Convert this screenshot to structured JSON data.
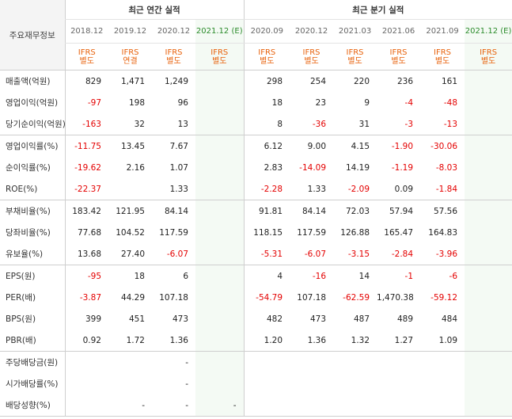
{
  "title": "주요재무정보",
  "groups": {
    "annual": "최근 연간 실적",
    "quarterly": "최근 분기 실적"
  },
  "periods": [
    {
      "label": "2018.12",
      "estimate": false,
      "standard": [
        "IFRS",
        "별도"
      ]
    },
    {
      "label": "2019.12",
      "estimate": false,
      "standard": [
        "IFRS",
        "연결"
      ]
    },
    {
      "label": "2020.12",
      "estimate": false,
      "standard": [
        "IFRS",
        "별도"
      ]
    },
    {
      "label": "2021.12",
      "mark": "(E)",
      "estimate": true,
      "standard": [
        "IFRS",
        "별도"
      ]
    },
    {
      "label": "2020.09",
      "estimate": false,
      "standard": [
        "IFRS",
        "별도"
      ]
    },
    {
      "label": "2020.12",
      "estimate": false,
      "standard": [
        "IFRS",
        "별도"
      ]
    },
    {
      "label": "2021.03",
      "estimate": false,
      "standard": [
        "IFRS",
        "별도"
      ]
    },
    {
      "label": "2021.06",
      "estimate": false,
      "standard": [
        "IFRS",
        "별도"
      ]
    },
    {
      "label": "2021.09",
      "estimate": false,
      "standard": [
        "IFRS",
        "별도"
      ]
    },
    {
      "label": "2021.12",
      "mark": "(E)",
      "estimate": true,
      "standard": [
        "IFRS",
        "별도"
      ]
    }
  ],
  "rows": [
    {
      "label": "매출액(억원)",
      "values": [
        "829",
        "1,471",
        "1,249",
        "",
        "298",
        "254",
        "220",
        "236",
        "161",
        ""
      ]
    },
    {
      "label": "영업이익(억원)",
      "values": [
        "-97",
        "198",
        "96",
        "",
        "18",
        "23",
        "9",
        "-4",
        "-48",
        ""
      ]
    },
    {
      "label": "당기순이익(억원)",
      "values": [
        "-163",
        "32",
        "13",
        "",
        "8",
        "-36",
        "31",
        "-3",
        "-13",
        ""
      ]
    },
    {
      "label": "영업이익률(%)",
      "values": [
        "-11.75",
        "13.45",
        "7.67",
        "",
        "6.12",
        "9.00",
        "4.15",
        "-1.90",
        "-30.06",
        ""
      ]
    },
    {
      "label": "순이익률(%)",
      "values": [
        "-19.62",
        "2.16",
        "1.07",
        "",
        "2.83",
        "-14.09",
        "14.19",
        "-1.19",
        "-8.03",
        ""
      ]
    },
    {
      "label": "ROE(%)",
      "values": [
        "-22.37",
        "",
        "1.33",
        "",
        "-2.28",
        "1.33",
        "-2.09",
        "0.09",
        "-1.84",
        ""
      ]
    },
    {
      "label": "부채비율(%)",
      "values": [
        "183.42",
        "121.95",
        "84.14",
        "",
        "91.81",
        "84.14",
        "72.03",
        "57.94",
        "57.56",
        ""
      ]
    },
    {
      "label": "당좌비율(%)",
      "values": [
        "77.68",
        "104.52",
        "117.59",
        "",
        "118.15",
        "117.59",
        "126.88",
        "165.47",
        "164.83",
        ""
      ]
    },
    {
      "label": "유보율(%)",
      "values": [
        "13.68",
        "27.40",
        "-6.07",
        "",
        "-5.31",
        "-6.07",
        "-3.15",
        "-2.84",
        "-3.96",
        ""
      ]
    },
    {
      "label": "EPS(원)",
      "values": [
        "-95",
        "18",
        "6",
        "",
        "4",
        "-16",
        "14",
        "-1",
        "-6",
        ""
      ]
    },
    {
      "label": "PER(배)",
      "values": [
        "-3.87",
        "44.29",
        "107.18",
        "",
        "-54.79",
        "107.18",
        "-62.59",
        "1,470.38",
        "-59.12",
        ""
      ]
    },
    {
      "label": "BPS(원)",
      "values": [
        "399",
        "451",
        "473",
        "",
        "482",
        "473",
        "487",
        "489",
        "484",
        ""
      ]
    },
    {
      "label": "PBR(배)",
      "values": [
        "0.92",
        "1.72",
        "1.36",
        "",
        "1.20",
        "1.36",
        "1.32",
        "1.27",
        "1.09",
        ""
      ]
    },
    {
      "label": "주당배당금(원)",
      "values": [
        "",
        "",
        "-",
        "",
        "",
        "",
        "",
        "",
        "",
        ""
      ]
    },
    {
      "label": "시가배당률(%)",
      "values": [
        "",
        "",
        "-",
        "",
        "",
        "",
        "",
        "",
        "",
        ""
      ]
    },
    {
      "label": "배당성향(%)",
      "values": [
        "",
        "-",
        "-",
        "-",
        "",
        "",
        "",
        "",
        "",
        ""
      ]
    }
  ],
  "colors": {
    "negative": "#e40000",
    "standard": "#e8620c",
    "estimate_bg": "#f4faf4",
    "estimate_text": "#2a8b2a"
  }
}
